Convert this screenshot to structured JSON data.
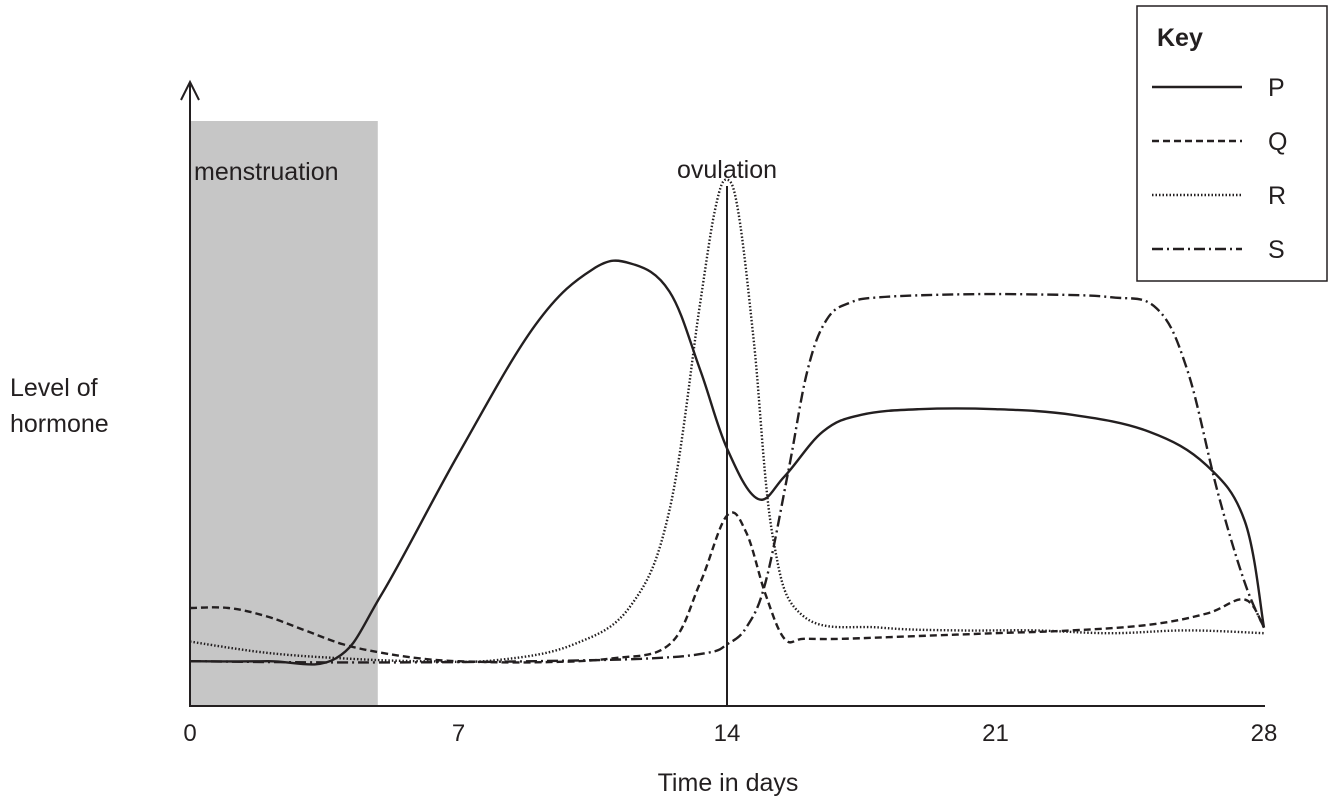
{
  "chart_data": {
    "type": "line",
    "xlabel": "Time in days",
    "ylabel": [
      "Level of",
      "hormone"
    ],
    "x_ticks": [
      "0",
      "7",
      "14",
      "21",
      "28"
    ],
    "xlim": [
      0,
      28
    ],
    "ylim": [
      0,
      100
    ],
    "grid": false,
    "legend": {
      "title": "Key",
      "position": "top-right"
    },
    "annotations": {
      "menstruation": {
        "label": "menstruation",
        "x_start": 0,
        "x_end": 5
      },
      "ovulation": {
        "label": "ovulation",
        "x": 14
      }
    },
    "series": [
      {
        "name": "P",
        "style": "solid",
        "x": [
          0,
          2,
          3.8,
          5,
          7,
          9,
          10.5,
          11.5,
          12.5,
          13.3,
          14,
          14.8,
          15.5,
          16.5,
          17.5,
          19,
          21,
          23,
          25,
          26.5,
          27.5,
          28
        ],
        "y": [
          8,
          8,
          8.5,
          20,
          45,
          68,
          78,
          79,
          74,
          60,
          46,
          37,
          41,
          49,
          52,
          53,
          53,
          52,
          49,
          43,
          33,
          14
        ]
      },
      {
        "name": "Q",
        "style": "dashed",
        "x": [
          0,
          1,
          2,
          3,
          4,
          5,
          6,
          7,
          9,
          11,
          12.5,
          13.3,
          14,
          14.5,
          15,
          15.5,
          16,
          17,
          19,
          21,
          23,
          25,
          26.5,
          27.5,
          28
        ],
        "y": [
          17.5,
          17.5,
          16,
          13.5,
          11,
          9.5,
          8.5,
          8,
          7.8,
          8.5,
          11,
          22,
          34,
          31,
          20,
          12,
          12,
          12,
          12.5,
          13,
          13.5,
          14.5,
          16.5,
          19,
          14
        ]
      },
      {
        "name": "R",
        "style": "dotted",
        "x": [
          0,
          2,
          4,
          6,
          8,
          10,
          11.5,
          12.5,
          13.3,
          13.7,
          14,
          14.3,
          14.7,
          15.2,
          16,
          18,
          20,
          22,
          24,
          26,
          28
        ],
        "y": [
          11.5,
          9.5,
          8.5,
          8,
          8.2,
          11,
          18,
          35,
          72,
          89,
          94,
          88,
          65,
          30,
          16,
          14,
          13.5,
          13.5,
          13,
          13.5,
          13
        ]
      },
      {
        "name": "S",
        "style": "dashdot",
        "x": [
          0,
          3,
          6,
          9,
          12,
          13.5,
          14,
          14.5,
          15,
          15.6,
          16.1,
          16.6,
          17.2,
          18,
          20,
          22,
          24,
          25.2,
          26,
          26.8,
          27.5,
          28
        ],
        "y": [
          8,
          7.8,
          7.8,
          8,
          8.5,
          9.5,
          11,
          14,
          22,
          42,
          60,
          69,
          72,
          73,
          73.5,
          73.5,
          73,
          71,
          60,
          38,
          22,
          14
        ]
      }
    ]
  }
}
